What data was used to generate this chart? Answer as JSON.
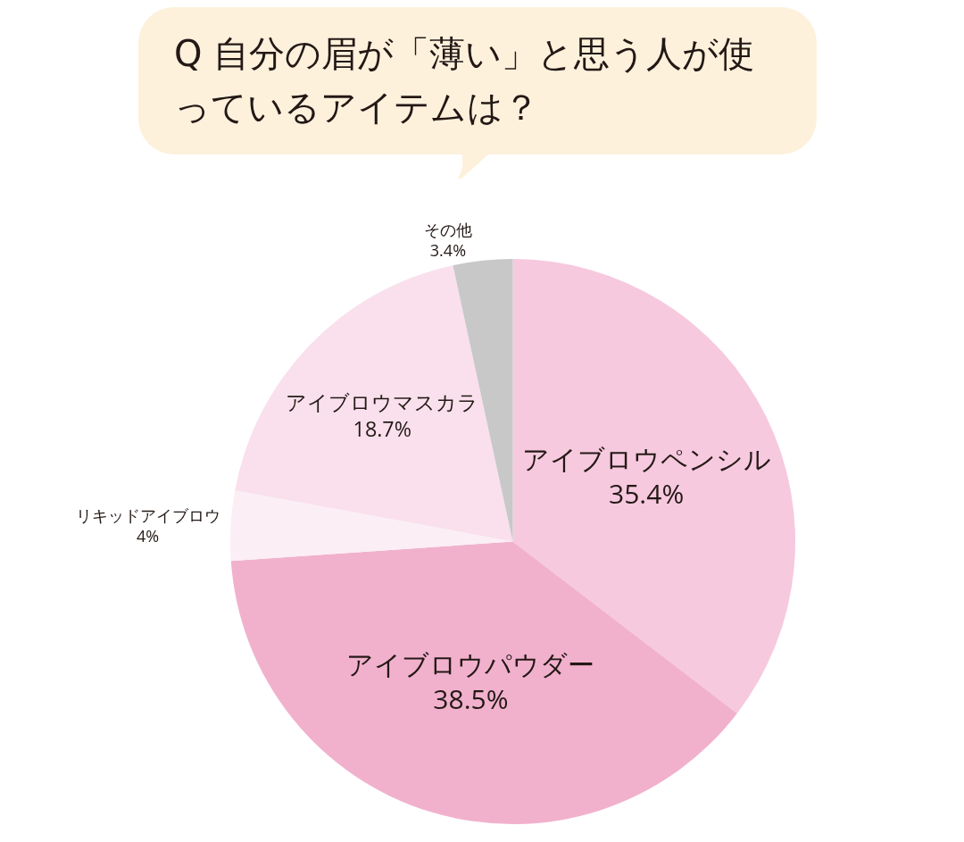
{
  "chart_data": {
    "type": "pie",
    "title": "Q 自分の眉が「薄い」と思う人が使っているアイテムは？",
    "categories": [
      "アイブロウペンシル",
      "アイブロウパウダー",
      "リキッドアイブロウ",
      "アイブロウマスカラ",
      "その他"
    ],
    "values": [
      35.4,
      38.5,
      4,
      18.7,
      3.4
    ],
    "value_labels": [
      "35.4%",
      "38.5%",
      "4%",
      "18.7%",
      "3.4%"
    ],
    "colors": [
      "#f6c9de",
      "#f1b1cd",
      "#fbeef4",
      "#f9e0ec",
      "#c8c8c8"
    ],
    "legend": false
  }
}
